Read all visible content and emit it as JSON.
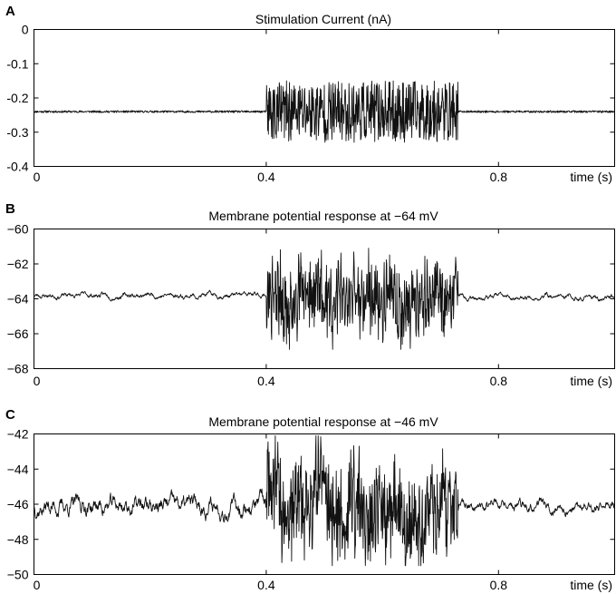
{
  "chart_data": [
    {
      "type": "line",
      "panel_label": "A",
      "title": "Stimulation Current (nA)",
      "xlabel": "time (s)",
      "x_ticks": [
        0,
        0.4,
        0.8
      ],
      "x_tick_labels": [
        "0",
        "0.4",
        "0.8"
      ],
      "xlim": [
        0,
        1.0
      ],
      "y_ticks": [
        0,
        -0.1,
        -0.2,
        -0.3,
        -0.4
      ],
      "y_tick_labels": [
        "0",
        "-0.1",
        "-0.2",
        "-0.3",
        "-0.4"
      ],
      "ylim": [
        -0.4,
        0
      ],
      "grid": false,
      "series": [
        {
          "segments": [
            {
              "x_start": 0,
              "x_end": 0.4,
              "baseline": -0.24,
              "noise_amplitude": 0.003
            },
            {
              "x_start": 0.4,
              "x_end": 0.73,
              "baseline": -0.24,
              "noise_amplitude": 0.09
            },
            {
              "x_start": 0.73,
              "x_end": 1.0,
              "baseline": -0.24,
              "noise_amplitude": 0.003
            }
          ]
        }
      ]
    },
    {
      "type": "line",
      "panel_label": "B",
      "title": "Membrane potential response at −64 mV",
      "xlabel": "time (s)",
      "x_ticks": [
        0,
        0.4,
        0.8
      ],
      "x_tick_labels": [
        "0",
        "0.4",
        "0.8"
      ],
      "xlim": [
        0,
        1.0
      ],
      "y_ticks": [
        -60,
        -62,
        -64,
        -66,
        -68
      ],
      "y_tick_labels": [
        "−60",
        "−62",
        "−64",
        "−66",
        "−68"
      ],
      "ylim": [
        -68,
        -60
      ],
      "grid": false,
      "series": [
        {
          "segments": [
            {
              "x_start": 0,
              "x_end": 0.4,
              "baseline": -63.8,
              "noise_amplitude": 0.15
            },
            {
              "x_start": 0.4,
              "x_end": 0.73,
              "baseline": -64.0,
              "noise_amplitude": 2.5
            },
            {
              "x_start": 0.73,
              "x_end": 1.0,
              "baseline": -63.9,
              "noise_amplitude": 0.15
            }
          ],
          "peak_max": -61.1,
          "peak_min": -66.9
        }
      ]
    },
    {
      "type": "line",
      "panel_label": "C",
      "title": "Membrane potential response at −46 mV",
      "xlabel": "time (s)",
      "x_ticks": [
        0,
        0.4,
        0.8
      ],
      "x_tick_labels": [
        "0",
        "0.4",
        "0.8"
      ],
      "xlim": [
        0,
        1.0
      ],
      "y_ticks": [
        -42,
        -44,
        -46,
        -48,
        -50
      ],
      "y_tick_labels": [
        "−42",
        "−44",
        "−46",
        "−48",
        "−50"
      ],
      "ylim": [
        -50,
        -42
      ],
      "grid": false,
      "series": [
        {
          "segments": [
            {
              "x_start": 0,
              "x_end": 0.4,
              "baseline": -46.1,
              "noise_amplitude": 0.5
            },
            {
              "x_start": 0.4,
              "x_end": 0.73,
              "baseline": -46.0,
              "noise_amplitude": 3.0
            },
            {
              "x_start": 0.73,
              "x_end": 1.0,
              "baseline": -46.1,
              "noise_amplitude": 0.3
            }
          ],
          "peak_max": -42.1,
          "peak_min": -49.5
        }
      ]
    }
  ]
}
